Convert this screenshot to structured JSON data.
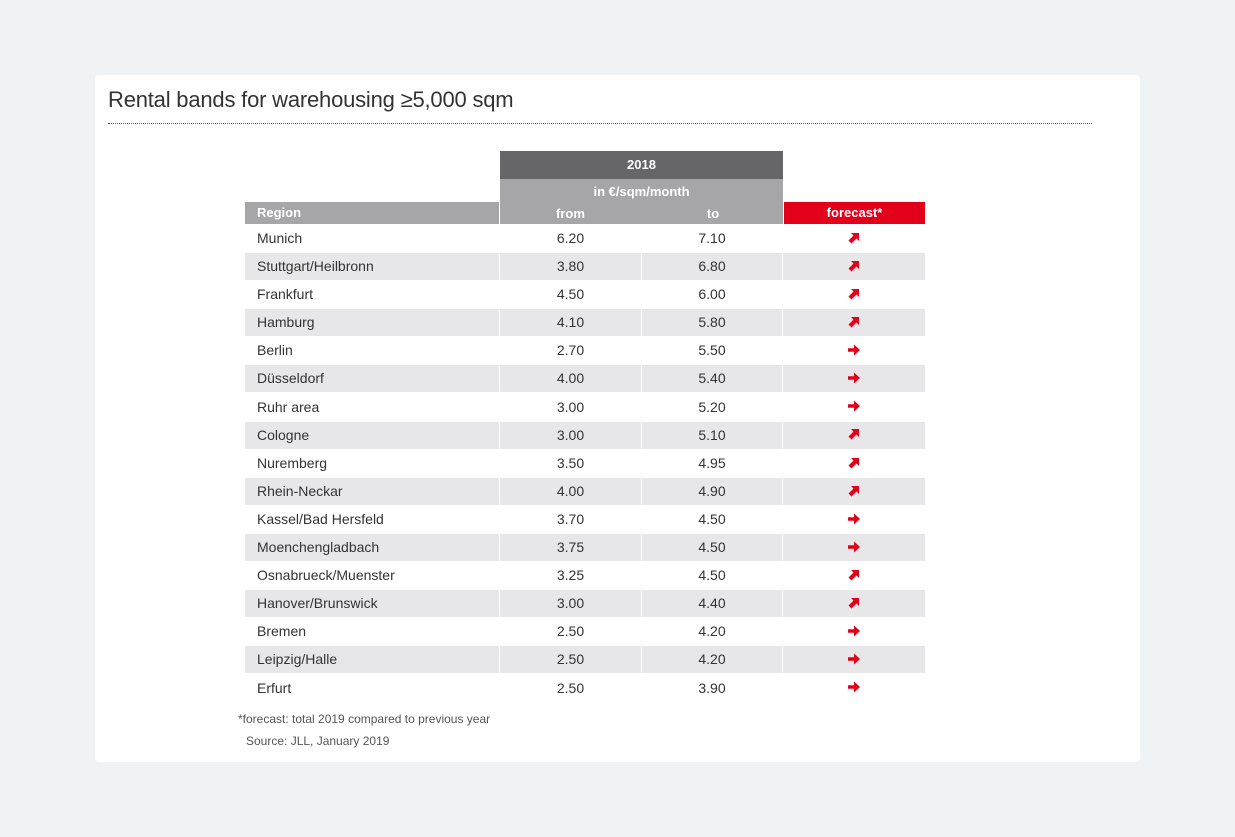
{
  "title": "Rental bands for warehousing ≥5,000 sqm",
  "chart_data": {
    "type": "table",
    "title": "Rental bands for warehousing ≥5,000 sqm",
    "header": {
      "year": "2018",
      "unit": "in €/sqm/month",
      "region": "Region",
      "from": "from",
      "to": "to",
      "forecast": "forecast*"
    },
    "rows": [
      {
        "region": "Munich",
        "from": "6.20",
        "to": "7.10",
        "forecast": "up"
      },
      {
        "region": "Stuttgart/Heilbronn",
        "from": "3.80",
        "to": "6.80",
        "forecast": "up"
      },
      {
        "region": "Frankfurt",
        "from": "4.50",
        "to": "6.00",
        "forecast": "up"
      },
      {
        "region": "Hamburg",
        "from": "4.10",
        "to": "5.80",
        "forecast": "up"
      },
      {
        "region": "Berlin",
        "from": "2.70",
        "to": "5.50",
        "forecast": "stable"
      },
      {
        "region": "Düsseldorf",
        "from": "4.00",
        "to": "5.40",
        "forecast": "stable"
      },
      {
        "region": "Ruhr area",
        "from": "3.00",
        "to": "5.20",
        "forecast": "stable"
      },
      {
        "region": "Cologne",
        "from": "3.00",
        "to": "5.10",
        "forecast": "up"
      },
      {
        "region": "Nuremberg",
        "from": "3.50",
        "to": "4.95",
        "forecast": "up"
      },
      {
        "region": "Rhein-Neckar",
        "from": "4.00",
        "to": "4.90",
        "forecast": "up"
      },
      {
        "region": "Kassel/Bad Hersfeld",
        "from": "3.70",
        "to": "4.50",
        "forecast": "stable"
      },
      {
        "region": "Moenchengladbach",
        "from": "3.75",
        "to": "4.50",
        "forecast": "stable"
      },
      {
        "region": "Osnabrueck/Muenster",
        "from": "3.25",
        "to": "4.50",
        "forecast": "up"
      },
      {
        "region": "Hanover/Brunswick",
        "from": "3.00",
        "to": "4.40",
        "forecast": "up"
      },
      {
        "region": "Bremen",
        "from": "2.50",
        "to": "4.20",
        "forecast": "stable"
      },
      {
        "region": "Leipzig/Halle",
        "from": "2.50",
        "to": "4.20",
        "forecast": "stable"
      },
      {
        "region": "Erfurt",
        "from": "2.50",
        "to": "3.90",
        "forecast": "stable"
      }
    ]
  },
  "footnote": "*forecast:  total 2019 compared to previous year",
  "source": "Source: JLL, January 2019",
  "colors": {
    "accent": "#e2001a",
    "header_dark": "#666669",
    "header_light": "#a6a6a8",
    "row_shade": "#e7e7e9"
  },
  "icons": {
    "up": "arrow-up-right-icon",
    "stable": "arrow-right-icon"
  }
}
